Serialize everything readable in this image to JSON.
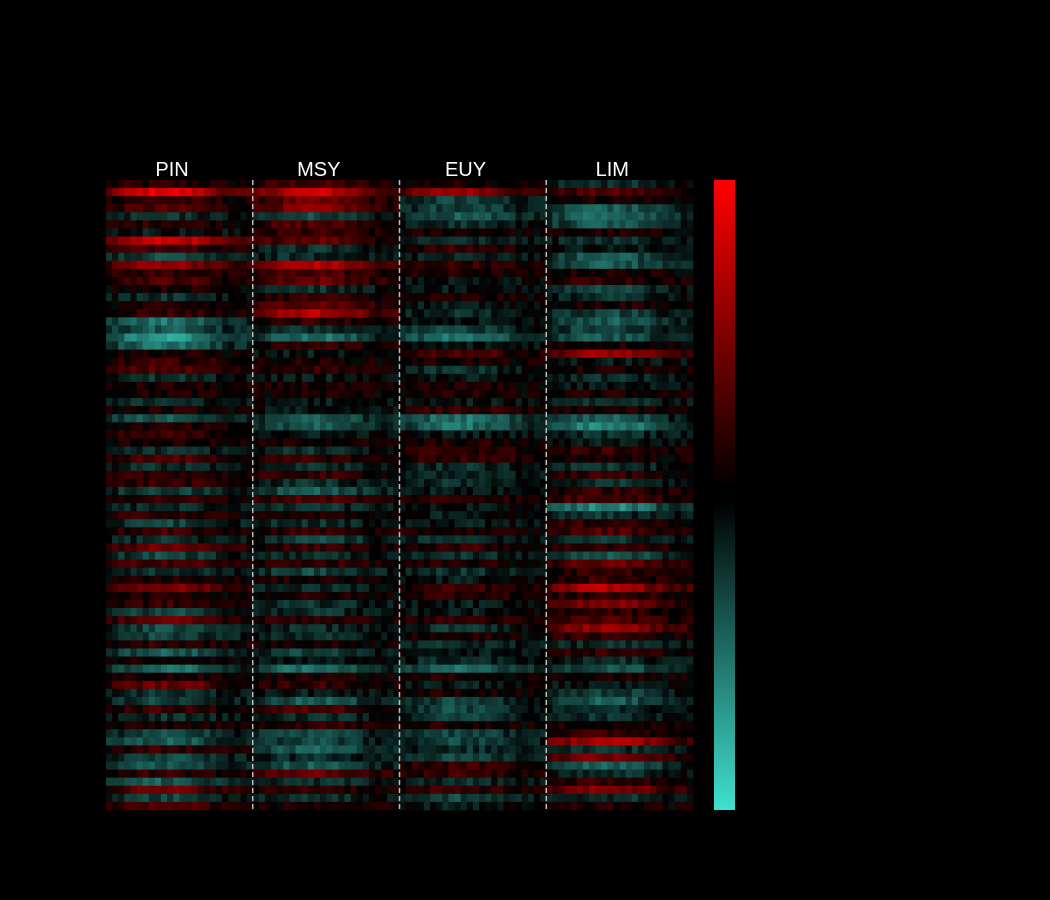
{
  "chart_data": {
    "type": "heatmap",
    "groups": [
      "PIN",
      "MSY",
      "EUY",
      "LIM"
    ],
    "columns_per_group": 24,
    "rows": 78,
    "colorbar": {
      "positive_color": "#ff0000",
      "zero_color": "#000000",
      "negative_color": "#40e0d0",
      "ticks_shown": false
    },
    "value_range": [
      -1,
      1
    ],
    "row_profiles": [
      [
        0.15,
        0.25,
        0.1,
        -0.2
      ],
      [
        0.9,
        0.8,
        0.6,
        0.3
      ],
      [
        0.2,
        0.4,
        -0.3,
        0.1
      ],
      [
        0.3,
        0.5,
        -0.3,
        -0.4
      ],
      [
        -0.2,
        -0.3,
        -0.4,
        -0.5
      ],
      [
        0.2,
        0.3,
        -0.2,
        -0.4
      ],
      [
        -0.1,
        0.2,
        0.1,
        0.1
      ],
      [
        0.8,
        0.4,
        -0.2,
        -0.2
      ],
      [
        0.3,
        -0.2,
        0.2,
        -0.1
      ],
      [
        -0.3,
        -0.2,
        -0.2,
        -0.4
      ],
      [
        0.6,
        0.7,
        0.2,
        -0.4
      ],
      [
        0.2,
        0.3,
        0.1,
        0.1
      ],
      [
        0.3,
        0.4,
        -0.1,
        0.2
      ],
      [
        0.1,
        -0.2,
        -0.1,
        -0.3
      ],
      [
        -0.2,
        0.2,
        0.1,
        -0.2
      ],
      [
        0.1,
        0.4,
        -0.1,
        0.1
      ],
      [
        0.2,
        0.7,
        -0.2,
        -0.3
      ],
      [
        -0.5,
        0.2,
        -0.1,
        -0.4
      ],
      [
        -0.4,
        -0.2,
        -0.3,
        -0.3
      ],
      [
        -0.7,
        -0.5,
        -0.5,
        -0.4
      ],
      [
        -0.5,
        0.2,
        -0.1,
        0.1
      ],
      [
        0.1,
        -0.1,
        0.3,
        0.6
      ],
      [
        0.2,
        0.1,
        0.1,
        -0.1
      ],
      [
        0.3,
        0.2,
        -0.2,
        0.1
      ],
      [
        -0.2,
        -0.1,
        -0.1,
        -0.2
      ],
      [
        0.1,
        0.1,
        0.1,
        -0.1
      ],
      [
        0.1,
        0.1,
        0.1,
        0.1
      ],
      [
        -0.2,
        -0.1,
        -0.1,
        -0.2
      ],
      [
        0.1,
        -0.1,
        0.2,
        0.1
      ],
      [
        -0.4,
        -0.4,
        -0.5,
        -0.4
      ],
      [
        0.1,
        -0.4,
        -0.5,
        -0.6
      ],
      [
        0.2,
        -0.1,
        -0.1,
        -0.2
      ],
      [
        0.1,
        0.1,
        0.1,
        -0.1
      ],
      [
        -0.2,
        -0.2,
        0.2,
        0.2
      ],
      [
        0.3,
        0.2,
        0.2,
        0.1
      ],
      [
        -0.2,
        -0.2,
        -0.2,
        -0.2
      ],
      [
        0.2,
        0.2,
        -0.2,
        0.2
      ],
      [
        0.2,
        -0.2,
        -0.2,
        -0.2
      ],
      [
        -0.3,
        -0.4,
        -0.1,
        0.2
      ],
      [
        0.2,
        0.3,
        0.2,
        0.3
      ],
      [
        -0.2,
        -0.2,
        -0.1,
        -0.6
      ],
      [
        0.2,
        0.1,
        -0.1,
        -0.2
      ],
      [
        -0.3,
        -0.2,
        -0.1,
        0.2
      ],
      [
        0.2,
        0.2,
        0.1,
        0.3
      ],
      [
        -0.2,
        -0.3,
        -0.2,
        -0.2
      ],
      [
        0.4,
        0.2,
        0.2,
        0.2
      ],
      [
        -0.3,
        -0.2,
        -0.2,
        -0.4
      ],
      [
        0.3,
        0.2,
        0.1,
        0.4
      ],
      [
        -0.2,
        -0.3,
        -0.2,
        0.2
      ],
      [
        0.1,
        0.1,
        -0.1,
        0.2
      ],
      [
        0.5,
        -0.2,
        0.2,
        0.7
      ],
      [
        0.1,
        0.1,
        0.2,
        0.2
      ],
      [
        0.2,
        -0.2,
        -0.1,
        0.5
      ],
      [
        -0.3,
        -0.2,
        -0.1,
        0.2
      ],
      [
        0.4,
        0.2,
        0.2,
        0.3
      ],
      [
        -0.3,
        -0.2,
        -0.2,
        0.6
      ],
      [
        -0.3,
        -0.2,
        0.1,
        0.2
      ],
      [
        0.2,
        0.1,
        -0.2,
        -0.2
      ],
      [
        -0.4,
        -0.3,
        -0.1,
        0.2
      ],
      [
        0.1,
        -0.1,
        -0.2,
        -0.2
      ],
      [
        -0.5,
        -0.5,
        -0.5,
        -0.4
      ],
      [
        0.1,
        0.1,
        0.1,
        0.1
      ],
      [
        0.4,
        0.2,
        -0.1,
        -0.1
      ],
      [
        -0.2,
        -0.1,
        0.1,
        -0.3
      ],
      [
        -0.3,
        -0.4,
        -0.3,
        -0.4
      ],
      [
        0.2,
        0.3,
        -0.3,
        -0.2
      ],
      [
        -0.2,
        -0.2,
        -0.3,
        -0.2
      ],
      [
        0.1,
        0.2,
        0.1,
        0.1
      ],
      [
        -0.3,
        -0.3,
        -0.3,
        0.2
      ],
      [
        -0.4,
        -0.3,
        -0.3,
        0.7
      ],
      [
        0.2,
        -0.4,
        -0.2,
        -0.2
      ],
      [
        -0.3,
        -0.2,
        -0.3,
        0.5
      ],
      [
        -0.4,
        -0.4,
        0.2,
        -0.4
      ],
      [
        0.2,
        0.4,
        0.2,
        -0.2
      ],
      [
        -0.4,
        -0.2,
        -0.2,
        0.2
      ],
      [
        0.4,
        0.2,
        0.2,
        0.5
      ],
      [
        -0.3,
        -0.2,
        -0.3,
        -0.2
      ],
      [
        0.3,
        0.1,
        -0.1,
        0.1
      ]
    ]
  }
}
